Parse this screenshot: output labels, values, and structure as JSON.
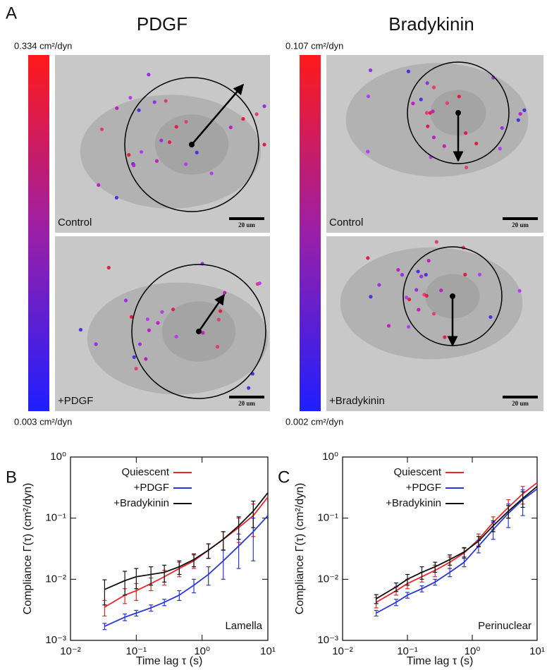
{
  "figure_a": {
    "label": "A",
    "columns": [
      {
        "title": "PDGF",
        "scale_max": "0.334 cm²/dyn",
        "scale_min": "0.003 cm²/dyn",
        "images": [
          {
            "caption": "Control",
            "scale_bar": "20 um"
          },
          {
            "caption": "+PDGF",
            "scale_bar": "20 um"
          }
        ]
      },
      {
        "title": "Bradykinin",
        "scale_max": "0.107 cm²/dyn",
        "scale_min": "0.002 cm²/dyn",
        "images": [
          {
            "caption": "Control",
            "scale_bar": "20 um"
          },
          {
            "caption": "+Bradykinin",
            "scale_bar": "20 um"
          }
        ]
      }
    ]
  },
  "chart_data": [
    {
      "type": "line",
      "label": "B",
      "annotation": "Lamella",
      "xlabel": "Time lag τ (s)",
      "ylabel": "Compliance Γ(τ) (cm²/dyn)",
      "xscale": "log",
      "yscale": "log",
      "legend": "upper left",
      "xlim": [
        0.01,
        10
      ],
      "ylim": [
        0.001,
        1
      ],
      "xticks": [
        {
          "value": 0.01,
          "label": "10⁻²"
        },
        {
          "value": 0.1,
          "label": "10⁻¹"
        },
        {
          "value": 1,
          "label": "10⁰"
        },
        {
          "value": 10,
          "label": "10¹"
        }
      ],
      "yticks": [
        {
          "value": 0.001,
          "label": "10⁻³"
        },
        {
          "value": 0.01,
          "label": "10⁻²"
        },
        {
          "value": 0.1,
          "label": "10⁻¹"
        },
        {
          "value": 1,
          "label": "10⁰"
        }
      ],
      "x": [
        0.033,
        0.067,
        0.1,
        0.167,
        0.267,
        0.45,
        0.75,
        1.25,
        2.1,
        3.6,
        6,
        10
      ],
      "series": [
        {
          "name": "Quiescent",
          "color": "#e8262b",
          "values": [
            0.0035,
            0.0055,
            0.0065,
            0.0085,
            0.011,
            0.015,
            0.02,
            0.03,
            0.045,
            0.07,
            0.11,
            0.22
          ],
          "errors": [
            0.001,
            0.0015,
            0.002,
            0.002,
            0.003,
            0.004,
            0.005,
            0.008,
            0.015,
            0.03,
            0.06,
            null
          ]
        },
        {
          "name": "+PDGF",
          "color": "#2a35d8",
          "values": [
            0.0017,
            0.0024,
            0.0028,
            0.0034,
            0.0042,
            0.0055,
            0.008,
            0.012,
            0.02,
            0.035,
            0.06,
            0.11
          ],
          "errors": [
            0.0002,
            0.0003,
            0.0003,
            0.0004,
            0.0005,
            0.001,
            0.002,
            0.004,
            0.01,
            0.02,
            0.04,
            null
          ]
        },
        {
          "name": "+Bradykinin",
          "color": "#111111",
          "values": [
            0.0068,
            0.0095,
            0.011,
            0.012,
            0.013,
            0.016,
            0.021,
            0.03,
            0.045,
            0.075,
            0.13,
            0.26
          ],
          "errors": [
            0.003,
            0.004,
            0.004,
            0.004,
            0.004,
            0.004,
            0.005,
            0.008,
            0.015,
            0.03,
            0.06,
            null
          ]
        }
      ]
    },
    {
      "type": "line",
      "label": "C",
      "annotation": "Perinuclear",
      "xlabel": "Time lag τ (s)",
      "ylabel": "Compliance Γ(τ) (cm²/dyn)",
      "xscale": "log",
      "yscale": "log",
      "legend": "upper left",
      "xlim": [
        0.01,
        10
      ],
      "ylim": [
        0.001,
        1
      ],
      "xticks": [
        {
          "value": 0.01,
          "label": "10⁻²"
        },
        {
          "value": 0.1,
          "label": "10⁻¹"
        },
        {
          "value": 1,
          "label": "10⁰"
        },
        {
          "value": 10,
          "label": "10¹"
        }
      ],
      "yticks": [
        {
          "value": 0.001,
          "label": "10⁻³"
        },
        {
          "value": 0.01,
          "label": "10⁻²"
        },
        {
          "value": 0.1,
          "label": "10⁻¹"
        },
        {
          "value": 1,
          "label": "10⁰"
        }
      ],
      "x": [
        0.033,
        0.067,
        0.1,
        0.167,
        0.267,
        0.45,
        0.75,
        1.25,
        2.1,
        3.6,
        6,
        10
      ],
      "series": [
        {
          "name": "Quiescent",
          "color": "#e8262b",
          "values": [
            0.0042,
            0.0065,
            0.0085,
            0.011,
            0.014,
            0.019,
            0.027,
            0.045,
            0.085,
            0.15,
            0.25,
            0.38
          ],
          "errors": [
            0.0008,
            0.001,
            0.0015,
            0.002,
            0.003,
            0.004,
            0.005,
            0.01,
            0.02,
            0.05,
            0.08,
            null
          ]
        },
        {
          "name": "+PDGF",
          "color": "#2a35d8",
          "values": [
            0.0028,
            0.0042,
            0.0055,
            0.007,
            0.009,
            0.013,
            0.019,
            0.035,
            0.065,
            0.12,
            0.2,
            0.3
          ],
          "errors": [
            0.0003,
            0.0005,
            0.0006,
            0.0008,
            0.001,
            0.002,
            0.003,
            0.008,
            0.02,
            0.05,
            0.09,
            null
          ]
        },
        {
          "name": "+Bradykinin",
          "color": "#111111",
          "values": [
            0.0048,
            0.0075,
            0.01,
            0.013,
            0.016,
            0.021,
            0.028,
            0.042,
            0.075,
            0.13,
            0.21,
            0.33
          ],
          "errors": [
            0.0008,
            0.0012,
            0.002,
            0.003,
            0.003,
            0.004,
            0.005,
            0.008,
            0.015,
            0.03,
            0.06,
            null
          ]
        }
      ]
    }
  ]
}
